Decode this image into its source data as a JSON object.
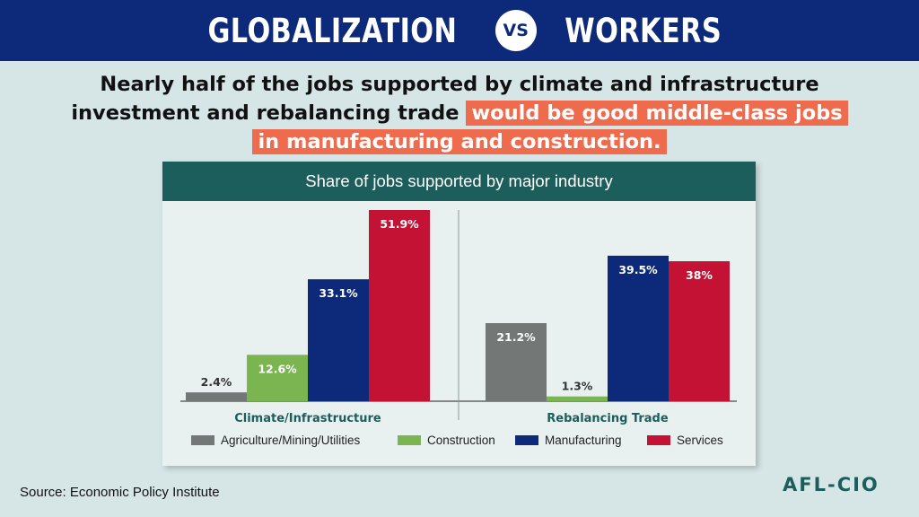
{
  "banner": {
    "left_word": "GLOBALIZATION",
    "vs_label": "VS",
    "right_word": "WORKERS"
  },
  "headline": {
    "line1": "Nearly half of the jobs supported by climate and infrastructure",
    "line2_plain": "investment and rebalancing trade",
    "line2_highlight": "would be good middle-class jobs",
    "line3_highlight": "in manufacturing and construction."
  },
  "source": "Source: Economic Policy Institute",
  "logo": "AFL-CIO",
  "colors": {
    "banner": "#0d2a7a",
    "highlight": "#ee6b4d",
    "header": "#1c5e5c",
    "agriculture": "#737876",
    "construction": "#7ab552",
    "manufacturing": "#0d2a7a",
    "services": "#c41235"
  },
  "chart_data": {
    "type": "bar",
    "title": "Share of jobs supported by major industry",
    "categories": [
      "Climate/Infrastructure",
      "Rebalancing Trade"
    ],
    "series": [
      {
        "name": "Agriculture/Mining/Utilities",
        "values": [
          2.4,
          21.2
        ],
        "labels": [
          "2.4%",
          "21.2%"
        ],
        "color": "#737876"
      },
      {
        "name": "Construction",
        "values": [
          12.6,
          1.3
        ],
        "labels": [
          "12.6%",
          "1.3%"
        ],
        "color": "#7ab552"
      },
      {
        "name": "Manufacturing",
        "values": [
          33.1,
          39.5
        ],
        "labels": [
          "33.1%",
          "39.5%"
        ],
        "color": "#0d2a7a"
      },
      {
        "name": "Services",
        "values": [
          51.9,
          38
        ],
        "labels": [
          "51.9%",
          "38%"
        ],
        "color": "#c41235"
      }
    ],
    "unit": "%",
    "ylim": [
      0,
      51.9
    ],
    "grid": false,
    "legend_position": "bottom",
    "label_position": "inside-top (outside above bar when bar is short)"
  }
}
